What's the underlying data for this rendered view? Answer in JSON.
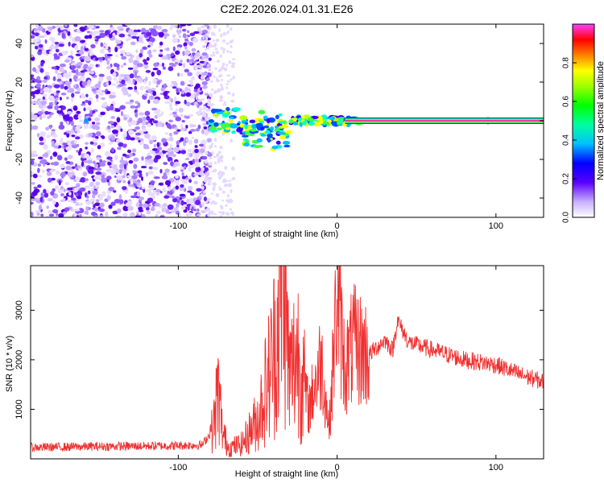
{
  "title": "C2E2.2026.024.01.31.E26",
  "chart_data": [
    {
      "type": "heatmap",
      "xlabel": "Height of straight line (km)",
      "ylabel": "Frequency (Hz)",
      "xlim": [
        -193,
        130
      ],
      "ylim": [
        -50,
        50
      ],
      "xticks": [
        -100,
        0,
        100
      ],
      "xtick_labels": [
        "-100",
        "0",
        "100"
      ],
      "yticks": [
        -40,
        -20,
        0,
        20,
        40
      ],
      "ytick_labels": [
        "-40",
        "-20",
        "0",
        "20",
        "40"
      ],
      "band": {
        "frequency": 0,
        "x_start": 5,
        "x_end": 130,
        "amplitude": 1.0
      },
      "colorbar": {
        "label": "Normalized spectral amplitude",
        "range": [
          0,
          1
        ],
        "ticks": [
          0.0,
          0.2,
          0.4,
          0.6,
          0.8
        ],
        "tick_labels": [
          "0.0",
          "0.2",
          "0.4",
          "0.6",
          "0.8"
        ]
      }
    },
    {
      "type": "line",
      "xlabel": "Height of straight line (km)",
      "ylabel": "SNR (10 * v/v)",
      "xlim": [
        -193,
        130
      ],
      "ylim": [
        0,
        3900
      ],
      "xticks": [
        -100,
        0,
        100
      ],
      "xtick_labels": [
        "-100",
        "0",
        "100"
      ],
      "yticks": [
        1000,
        2000,
        3000
      ],
      "ytick_labels": [
        "1000",
        "2000",
        "3000"
      ],
      "color": "#f03030",
      "x": [
        -193,
        -150,
        -110,
        -85,
        -78,
        -75,
        -72,
        -68,
        -60,
        -50,
        -42,
        -38,
        -34,
        -30,
        -25,
        -18,
        -10,
        -5,
        0,
        5,
        10,
        20,
        30,
        35,
        38,
        45,
        60,
        80,
        100,
        115,
        130
      ],
      "y": [
        230,
        250,
        260,
        280,
        600,
        1400,
        500,
        220,
        300,
        800,
        1800,
        2500,
        3900,
        1600,
        2200,
        1000,
        2000,
        600,
        3300,
        1800,
        2300,
        2100,
        2400,
        2200,
        2800,
        2350,
        2200,
        2000,
        1900,
        1700,
        1550
      ]
    }
  ]
}
